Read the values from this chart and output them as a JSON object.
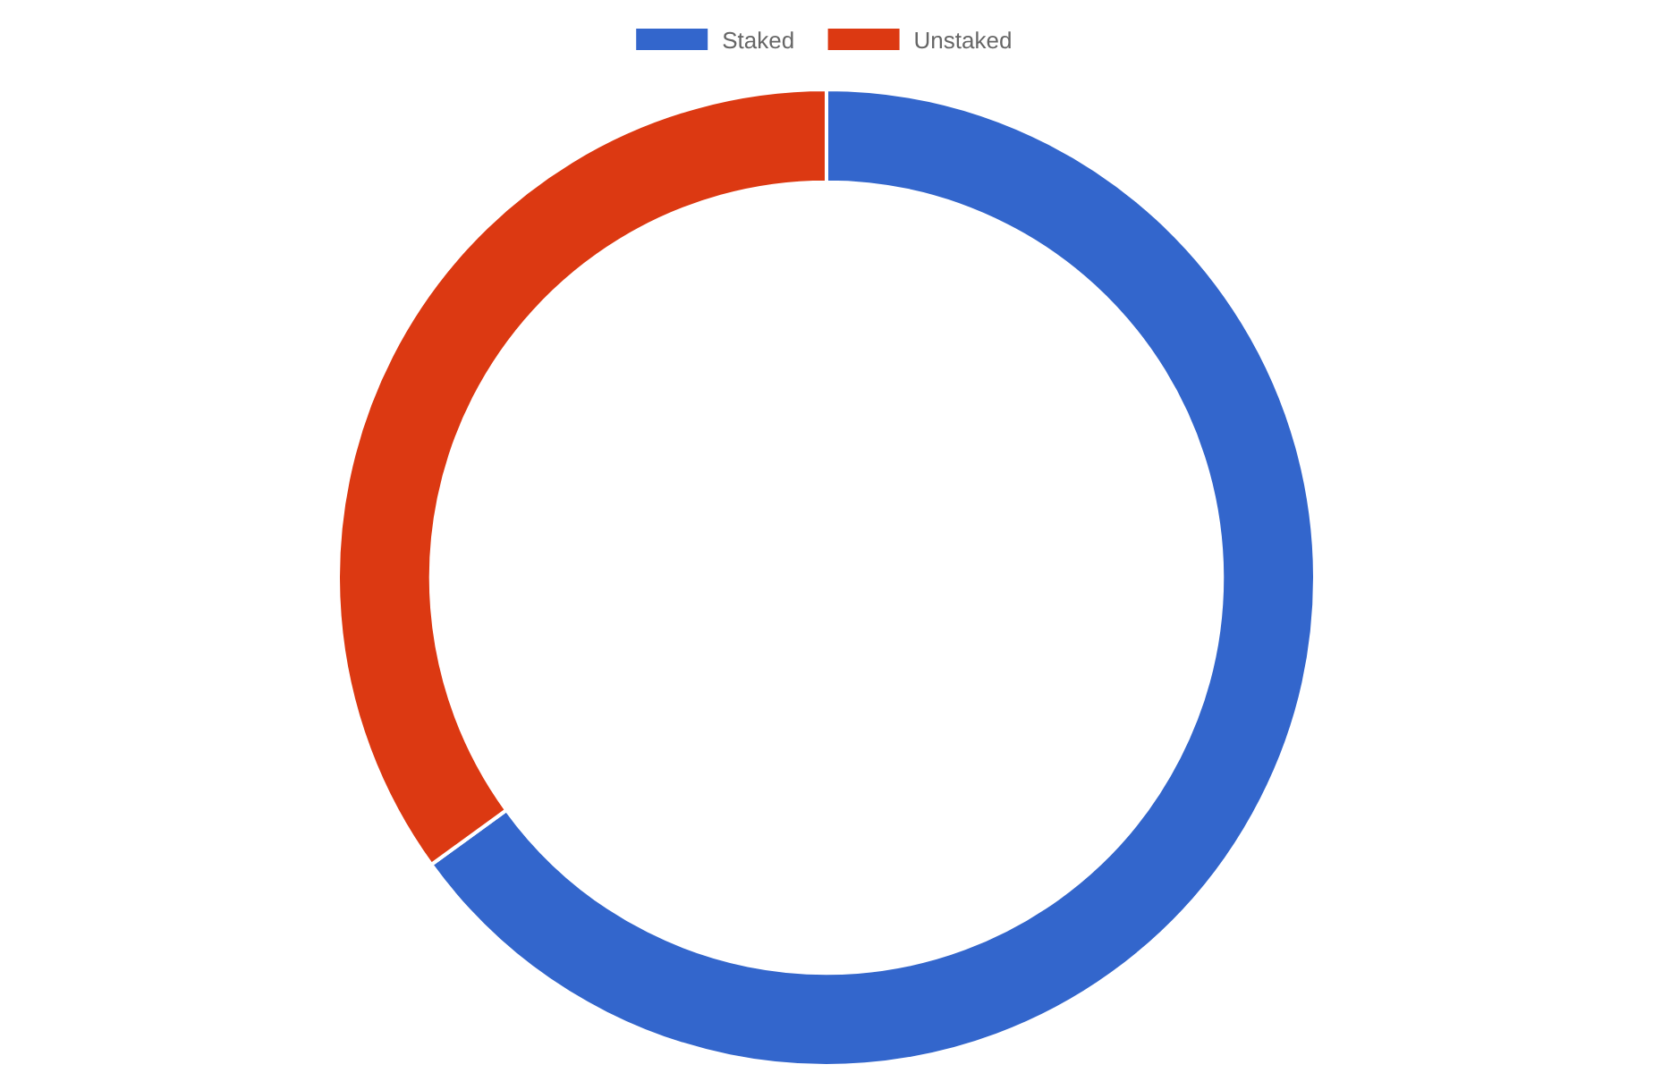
{
  "chart_data": {
    "type": "donut",
    "categories": [
      "Staked",
      "Unstaked"
    ],
    "values": [
      65,
      35
    ],
    "colors": [
      "#3366cc",
      "#dc3912"
    ],
    "legend": "top"
  }
}
